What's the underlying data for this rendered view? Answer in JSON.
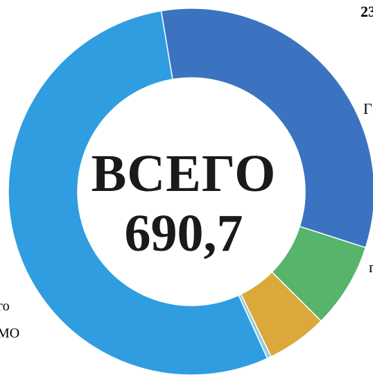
{
  "chart_data": {
    "type": "pie",
    "variant": "donut",
    "center_label": "ВСЕГО",
    "center_value": "690,7",
    "title": "",
    "slices": [
      {
        "label": "",
        "value": 225.0,
        "color": "#3b73c0"
      },
      {
        "label": "",
        "value": 52.0,
        "color": "#56b46b"
      },
      {
        "label": "",
        "value": 37.0,
        "color": "#dba93a"
      },
      {
        "label": "",
        "value": 2.5,
        "color": "#8ecbe6"
      },
      {
        "label": "",
        "value": 374.2,
        "color": "#2f9de0"
      }
    ],
    "legend": "none"
  },
  "fragments": {
    "top_right": "23",
    "mid_right": "Г",
    "low_right": "г",
    "left_line1": "го",
    "left_line2": "МО"
  }
}
